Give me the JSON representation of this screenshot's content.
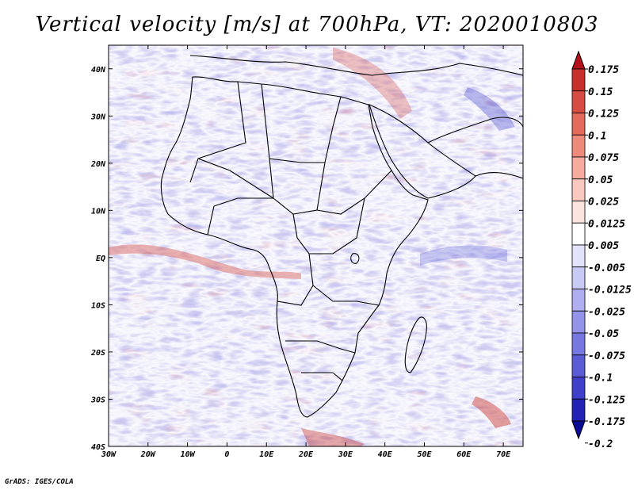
{
  "title": "Vertical velocity [m/s] at 700hPa, VT: 2020010803",
  "credit": "GrADS: IGES/COLA",
  "map": {
    "lon_ticks": [
      "30W",
      "20W",
      "10W",
      "0",
      "10E",
      "20E",
      "30E",
      "40E",
      "50E",
      "60E",
      "70E"
    ],
    "lat_ticks": [
      "40N",
      "30N",
      "20N",
      "10N",
      "EQ",
      "10S",
      "20S",
      "30S",
      "40S"
    ],
    "lon_range": [
      -30,
      75
    ],
    "lat_range": [
      -40,
      45
    ]
  },
  "colorbar": {
    "levels": [
      "0.175",
      "0.15",
      "0.125",
      "0.1",
      "0.075",
      "0.05",
      "0.025",
      "0.0125",
      "0.005",
      "-0.005",
      "-0.0125",
      "-0.025",
      "-0.05",
      "-0.075",
      "-0.1",
      "-0.125",
      "-0.175",
      "-0.2"
    ],
    "colors": [
      "#b5111b",
      "#c8302b",
      "#d74c42",
      "#e46a5c",
      "#ee8a7b",
      "#f5ab9e",
      "#f9c9c0",
      "#fce3de",
      "#ffffff",
      "#e2e2fb",
      "#c9c9f6",
      "#aeaef0",
      "#9393ea",
      "#7777e2",
      "#5b5bd6",
      "#3f3fca",
      "#2222b6",
      "#0b0b96"
    ]
  }
}
